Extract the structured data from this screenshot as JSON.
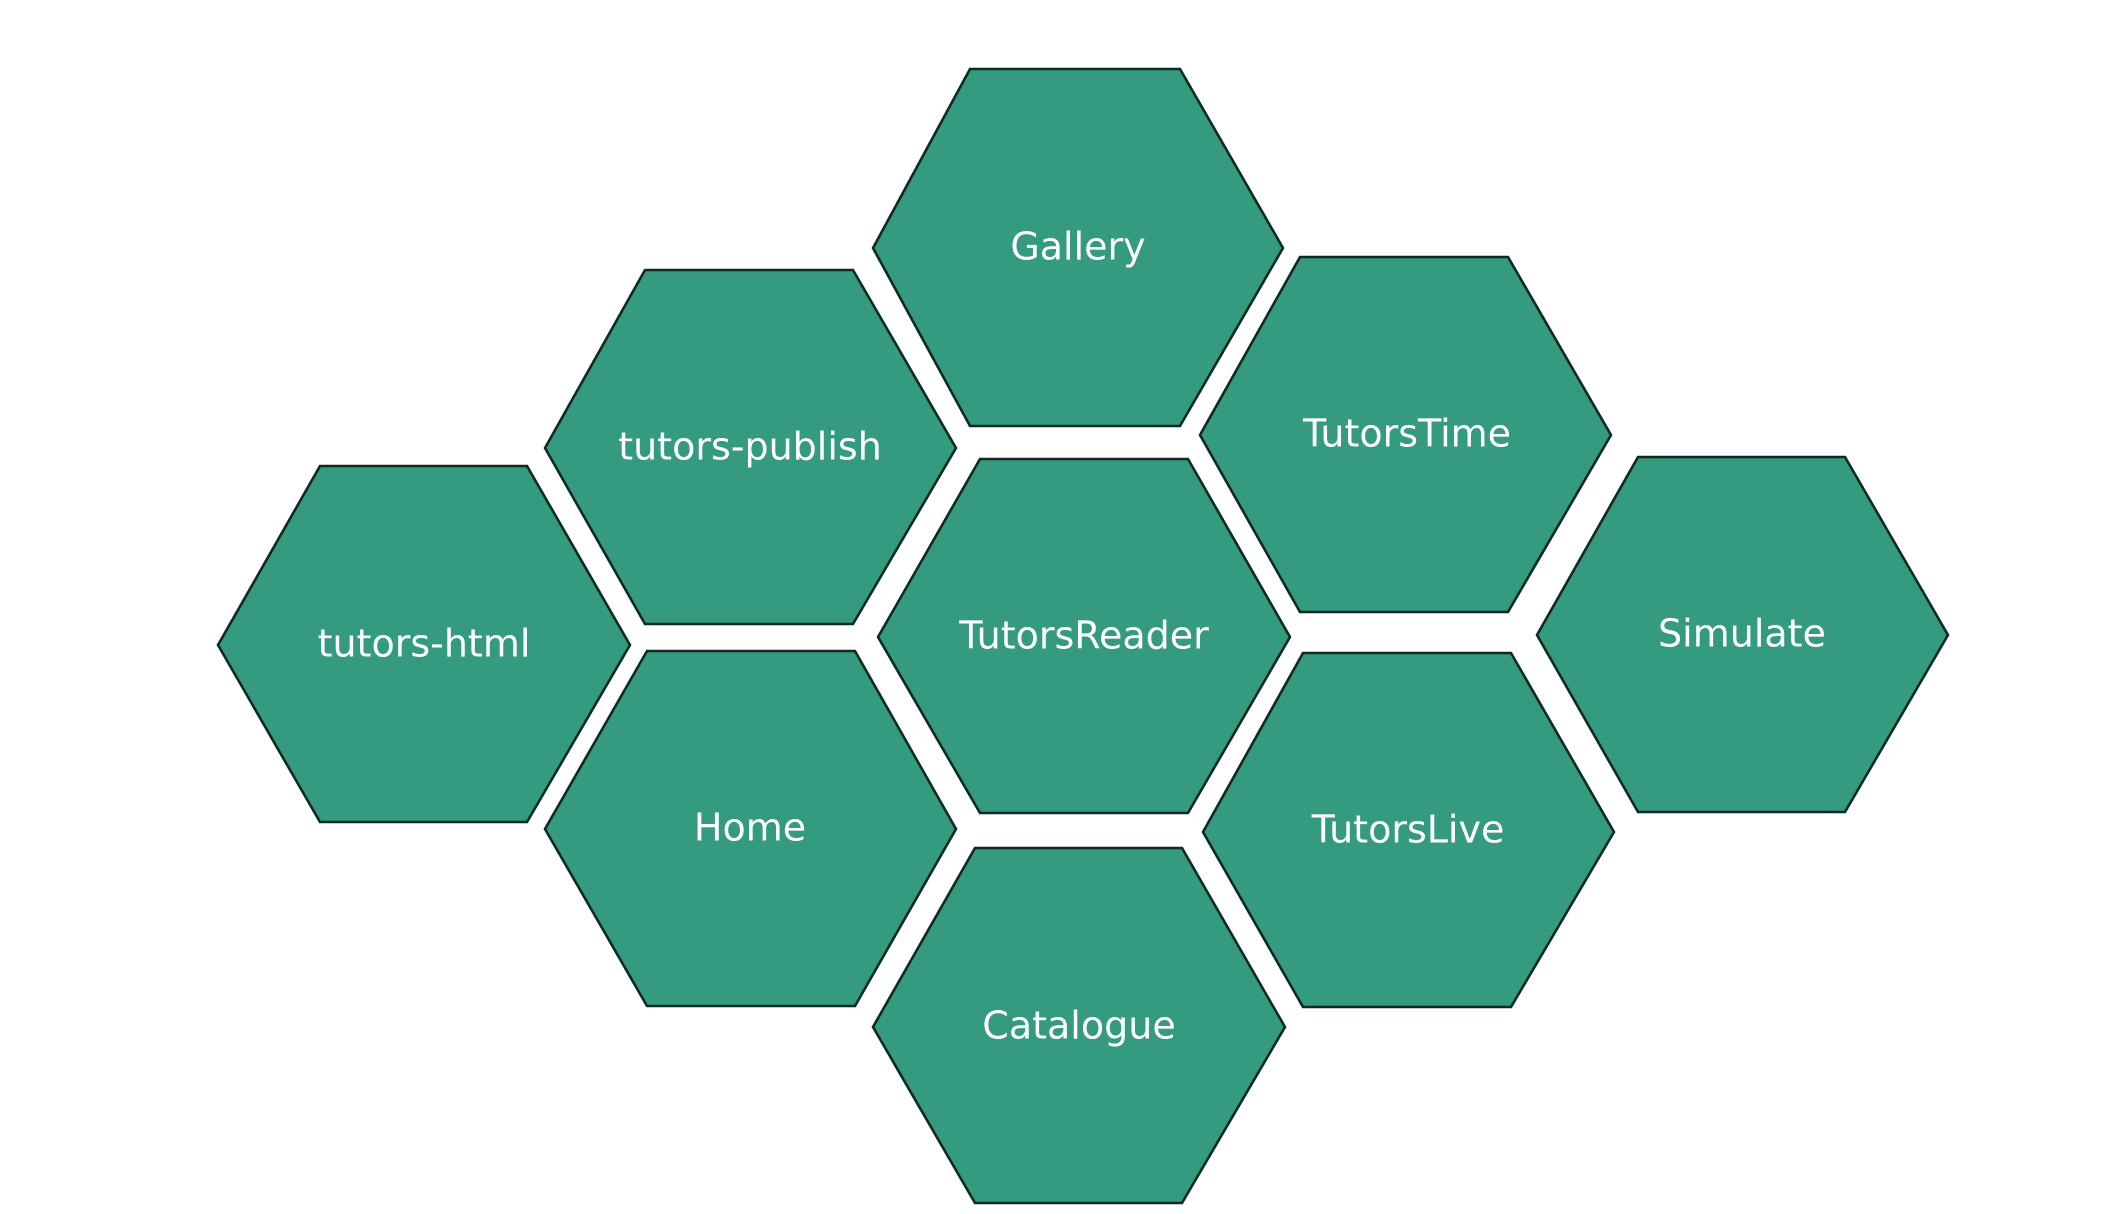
{
  "theme": {
    "hex_fill": "#349a80",
    "hex_stroke": "#0f2a22",
    "label_color": "#ffffff",
    "background": "#ffffff"
  },
  "nodes": [
    {
      "label": "Gallery"
    },
    {
      "label": "tutors-publish"
    },
    {
      "label": "TutorsTime"
    },
    {
      "label": "tutors-html"
    },
    {
      "label": "TutorsReader"
    },
    {
      "label": "Simulate"
    },
    {
      "label": "Home"
    },
    {
      "label": "TutorsLive"
    },
    {
      "label": "Catalogue"
    }
  ]
}
